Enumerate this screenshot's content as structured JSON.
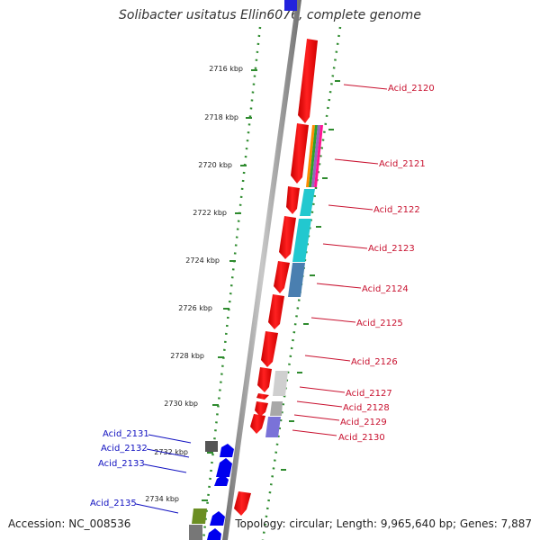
{
  "title": "Solibacter usitatus Ellin6076, complete genome",
  "footer": {
    "accession": "Accession: NC_008536",
    "topology": "Topology: circular; Length: 9,965,640 bp; Genes: 7,887"
  },
  "ruler": [
    {
      "label": "2716 kbp"
    },
    {
      "label": "2718 kbp"
    },
    {
      "label": "2720 kbp"
    },
    {
      "label": "2722 kbp"
    },
    {
      "label": "2724 kbp"
    },
    {
      "label": "2726 kbp"
    },
    {
      "label": "2728 kbp"
    },
    {
      "label": "2730 kbp"
    },
    {
      "label": "2732 kbp"
    },
    {
      "label": "2734 kbp"
    }
  ],
  "genes_right": [
    {
      "name": "Acid_2120"
    },
    {
      "name": "Acid_2121"
    },
    {
      "name": "Acid_2122"
    },
    {
      "name": "Acid_2123"
    },
    {
      "name": "Acid_2124"
    },
    {
      "name": "Acid_2125"
    },
    {
      "name": "Acid_2126"
    },
    {
      "name": "Acid_2127"
    },
    {
      "name": "Acid_2128"
    },
    {
      "name": "Acid_2129"
    },
    {
      "name": "Acid_2130"
    }
  ],
  "genes_left": [
    {
      "name": "Acid_2131"
    },
    {
      "name": "Acid_2132"
    },
    {
      "name": "Acid_2133"
    },
    {
      "name": "Acid_2135"
    }
  ],
  "colors": {
    "forward_gene": "#ff0000",
    "reverse_gene": "#0000ff",
    "label_red": "#c8102e",
    "label_blue": "#1010c0",
    "backbone": "#8a8a8a",
    "dotted_track": "#2e8b2e",
    "ruler_tick": "#2e8b2e"
  }
}
